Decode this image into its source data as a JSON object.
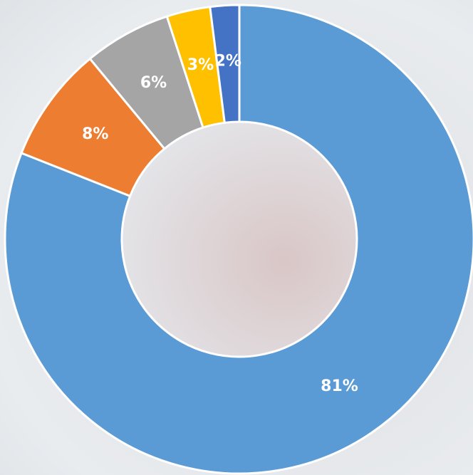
{
  "chart_data": {
    "type": "donut",
    "values": [
      81,
      8,
      6,
      3,
      2
    ],
    "value_labels": [
      "81%",
      "8%",
      "6%",
      "3%",
      "2%"
    ],
    "colors": [
      "#5b9bd5",
      "#ed7d31",
      "#a5a5a5",
      "#ffc000",
      "#4472c4"
    ]
  }
}
